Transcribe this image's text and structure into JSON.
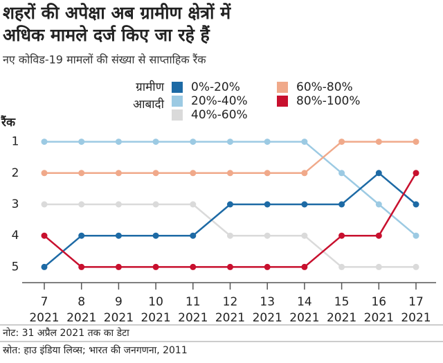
{
  "chart_data": {
    "type": "bump",
    "title": [
      "शहरों की अपेक्षा अब ग्रामीण क्षेत्रों में",
      "अधिक मामले दर्ज किए जा रहे हैं"
    ],
    "subtitle": "नए कोविड-19 मामलों की संख्या से साप्ताहिक रैंक",
    "legend_title": [
      "ग्रामीण",
      "आबादी"
    ],
    "y_label": "रैंक",
    "categories": [
      [
        "7",
        "2021"
      ],
      [
        "8",
        "2021"
      ],
      [
        "9",
        "2021"
      ],
      [
        "10",
        "2021"
      ],
      [
        "11",
        "2021"
      ],
      [
        "12",
        "2021"
      ],
      [
        "13",
        "2021"
      ],
      [
        "14",
        "2021"
      ],
      [
        "15",
        "2021"
      ],
      [
        "16",
        "2021"
      ],
      [
        "17",
        "2021"
      ]
    ],
    "ylim": [
      5.5,
      0.5
    ],
    "yticks": [
      1,
      2,
      3,
      4,
      5
    ],
    "inverted": true,
    "series": [
      {
        "name": "0%-20%",
        "color": "#1d6aa5",
        "values": [
          5,
          4,
          4,
          4,
          4,
          3,
          3,
          3,
          3,
          2,
          3
        ]
      },
      {
        "name": "20%-40%",
        "color": "#9ccae3",
        "values": [
          1,
          1,
          1,
          1,
          1,
          1,
          1,
          1,
          2,
          3,
          4
        ]
      },
      {
        "name": "40%-60%",
        "color": "#dadada",
        "values": [
          3,
          3,
          3,
          3,
          3,
          4,
          4,
          4,
          5,
          5,
          5
        ]
      },
      {
        "name": "60%-80%",
        "color": "#f0a98a",
        "values": [
          2,
          2,
          2,
          2,
          2,
          2,
          2,
          2,
          1,
          1,
          1
        ]
      },
      {
        "name": "80%-100%",
        "color": "#c8102e",
        "values": [
          4,
          5,
          5,
          5,
          5,
          5,
          5,
          5,
          4,
          4,
          2
        ]
      }
    ],
    "notes": [
      "नोट: 31 अप्रैल 2021 तक का डेटा",
      "स्रोत: हाउ इंडिया लिव्स; भारत की जनगणना, 2011"
    ]
  }
}
